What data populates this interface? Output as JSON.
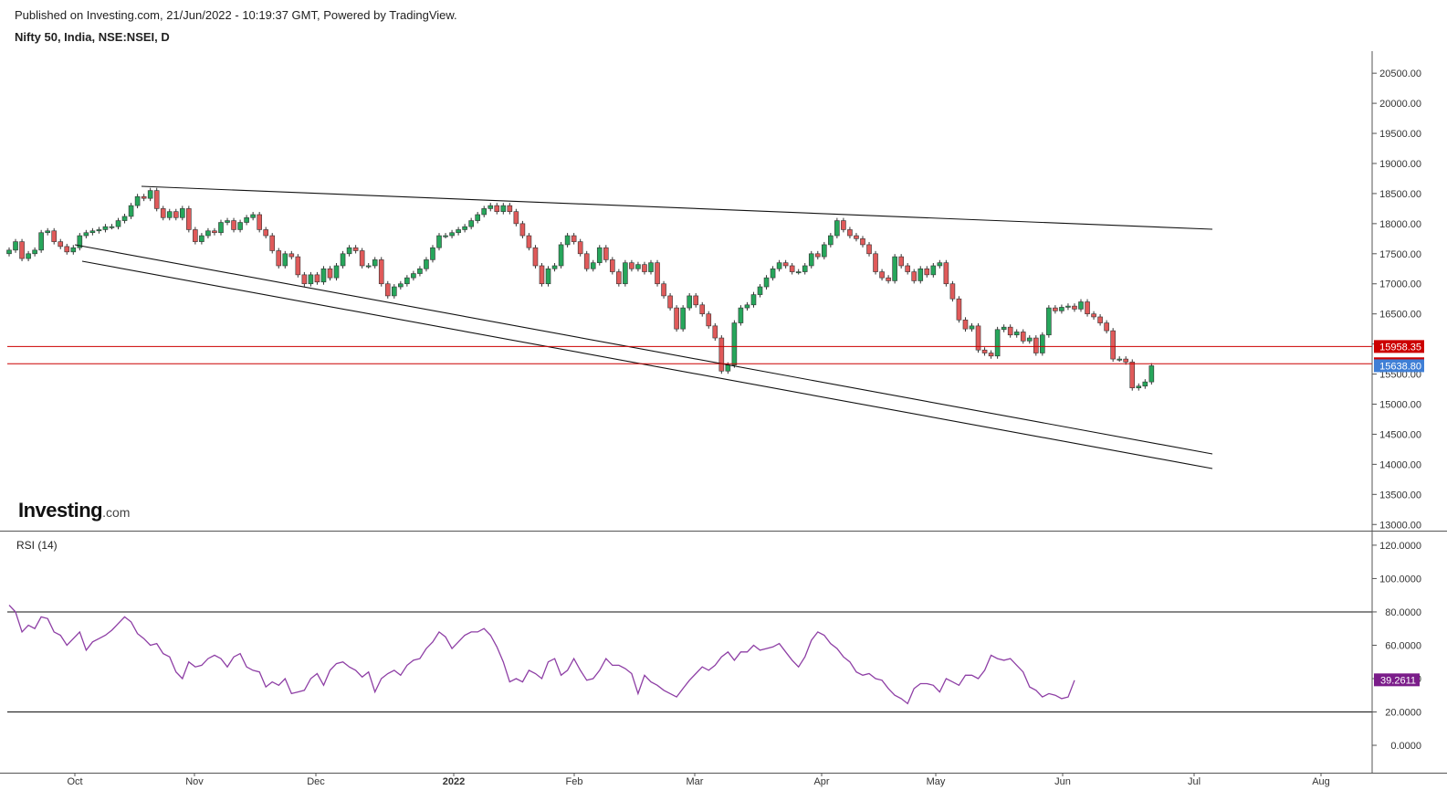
{
  "header": {
    "published": "Published on Investing.com, 21/Jun/2022 - 10:19:37 GMT, Powered by TradingView.",
    "symbol": "Nifty 50, India, NSE:NSEI, D"
  },
  "logo": {
    "brand": "Investing",
    "suffix": ".com"
  },
  "colors": {
    "up": "#26a65b",
    "down": "#e05a5a",
    "border": "#444444",
    "level_line": "#cc0000",
    "trend_line": "#111111",
    "rsi_line": "#8e3fa5",
    "last_price_badge": "#3f7fd6",
    "rsi_badge": "#7b1d8a"
  },
  "chart_data": [
    {
      "type": "candlestick",
      "title": "Nifty 50, India, NSE:NSEI, D",
      "ylim": [
        12900,
        20800
      ],
      "y_ticks": [
        "20500.00",
        "20000.00",
        "19500.00",
        "19000.00",
        "18500.00",
        "18000.00",
        "17500.00",
        "17000.00",
        "16500.00",
        "16000.00",
        "15500.00",
        "15000.00",
        "14500.00",
        "14000.00",
        "13500.00",
        "13000.00"
      ],
      "x_ticks": [
        "Oct",
        "Nov",
        "Dec",
        "2022",
        "Feb",
        "Mar",
        "Apr",
        "May",
        "Jun",
        "Jul",
        "Aug"
      ],
      "candles_close": [
        17560,
        17700,
        17420,
        17500,
        17560,
        17850,
        17880,
        17700,
        17620,
        17530,
        17600,
        17800,
        17850,
        17880,
        17900,
        17950,
        17950,
        18050,
        18120,
        18300,
        18450,
        18420,
        18550,
        18250,
        18100,
        18200,
        18100,
        18250,
        17900,
        17700,
        17800,
        17880,
        17850,
        18020,
        18050,
        17900,
        18020,
        18100,
        18150,
        17900,
        17800,
        17550,
        17300,
        17500,
        17450,
        17150,
        17000,
        17150,
        17030,
        17250,
        17100,
        17300,
        17500,
        17600,
        17550,
        17300,
        17300,
        17400,
        17000,
        16800,
        16950,
        17000,
        17100,
        17170,
        17250,
        17400,
        17600,
        17800,
        17800,
        17850,
        17900,
        17950,
        18050,
        18150,
        18250,
        18300,
        18200,
        18300,
        18200,
        18000,
        17800,
        17600,
        17300,
        17000,
        17250,
        17300,
        17650,
        17800,
        17700,
        17500,
        17250,
        17350,
        17600,
        17400,
        17200,
        17000,
        17350,
        17250,
        17320,
        17200,
        17350,
        17000,
        16800,
        16600,
        16250,
        16600,
        16800,
        16650,
        16500,
        16300,
        16100,
        15550,
        15650,
        16350,
        16600,
        16650,
        16820,
        16950,
        17100,
        17250,
        17350,
        17300,
        17200,
        17200,
        17300,
        17500,
        17450,
        17650,
        17800,
        18050,
        17900,
        17800,
        17750,
        17650,
        17500,
        17200,
        17100,
        17050,
        17450,
        17300,
        17200,
        17050,
        17250,
        17150,
        17300,
        17350,
        17000,
        16750,
        16400,
        16250,
        16300,
        15900,
        15850,
        15800,
        16240,
        16280,
        16150,
        16200,
        16050,
        16100,
        15850,
        16150,
        16600,
        16550,
        16610,
        16630,
        16580,
        16700,
        16500,
        16450,
        16350,
        16220,
        15750,
        15750,
        15700,
        15270,
        15300,
        15370,
        15638
      ],
      "levels": [
        15958.35,
        15671.45
      ],
      "last_price": 15638.8,
      "labels": [
        "15958.35",
        "15671.45",
        "15638.80"
      ]
    },
    {
      "type": "line",
      "title": "RSI (14)",
      "ylim": [
        -7,
        128
      ],
      "y_ticks": [
        "120.0000",
        "100.0000",
        "80.0000",
        "60.0000",
        "40.0000",
        "20.0000",
        "0.0000"
      ],
      "bands": [
        80,
        20
      ],
      "values": [
        84,
        80,
        68,
        72,
        70,
        77,
        76,
        68,
        66,
        60,
        64,
        68,
        57,
        62,
        64,
        66,
        69,
        73,
        77,
        74,
        67,
        64,
        60,
        61,
        55,
        53,
        44,
        40,
        50,
        47,
        48,
        52,
        54,
        52,
        47,
        53,
        55,
        47,
        45,
        44,
        35,
        38,
        36,
        40,
        31,
        32,
        33,
        40,
        43,
        36,
        45,
        49,
        50,
        47,
        45,
        41,
        44,
        32,
        40,
        43,
        45,
        42,
        48,
        51,
        52,
        58,
        62,
        68,
        65,
        58,
        62,
        66,
        68,
        68,
        70,
        66,
        59,
        50,
        38,
        40,
        38,
        45,
        43,
        40,
        50,
        52,
        42,
        45,
        52,
        45,
        39,
        40,
        45,
        52,
        48,
        48,
        46,
        43,
        31,
        42,
        38,
        36,
        33,
        31,
        29,
        34,
        39,
        43,
        47,
        45,
        48,
        53,
        56,
        51,
        56,
        56,
        60,
        57,
        58,
        59,
        61,
        56,
        51,
        47,
        53,
        63,
        68,
        66,
        61,
        58,
        53,
        50,
        44,
        42,
        43,
        40,
        39,
        34,
        30,
        28,
        25,
        34,
        37,
        37,
        36,
        32,
        40,
        38,
        36,
        42,
        42,
        40,
        45,
        54,
        52,
        51,
        52,
        48,
        44,
        35,
        33,
        29,
        31,
        30,
        28,
        29,
        39
      ],
      "last_value": 39.2611,
      "label": "39.2611"
    }
  ]
}
